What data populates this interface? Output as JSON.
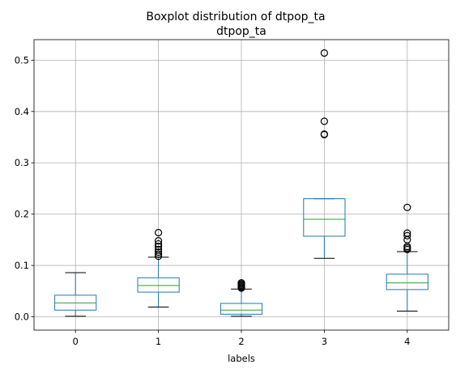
{
  "figure": {
    "suptitle": "Boxplot distribution of dtpop_ta"
  },
  "chart_data": {
    "type": "boxplot",
    "title": "dtpop_ta",
    "xlabel": "labels",
    "ylabel": "",
    "ylim": [
      -0.026,
      0.54
    ],
    "yticks": [
      0.0,
      0.1,
      0.2,
      0.3,
      0.4,
      0.5
    ],
    "ytick_labels": [
      "0.0",
      "0.1",
      "0.2",
      "0.3",
      "0.4",
      "0.5"
    ],
    "grid": true,
    "categories": [
      "0",
      "1",
      "2",
      "3",
      "4"
    ],
    "boxes": [
      {
        "label": "0",
        "whisker_low": 0.001,
        "q1": 0.013,
        "median": 0.027,
        "q3": 0.042,
        "whisker_high": 0.086,
        "outliers": []
      },
      {
        "label": "1",
        "whisker_low": 0.019,
        "q1": 0.048,
        "median": 0.061,
        "q3": 0.076,
        "whisker_high": 0.116,
        "outliers": [
          0.118,
          0.122,
          0.126,
          0.131,
          0.137,
          0.142,
          0.148,
          0.164
        ]
      },
      {
        "label": "2",
        "whisker_low": 0.001,
        "q1": 0.005,
        "median": 0.013,
        "q3": 0.026,
        "whisker_high": 0.054,
        "outliers": [
          0.056,
          0.058,
          0.06,
          0.062,
          0.064,
          0.066
        ]
      },
      {
        "label": "3",
        "whisker_low": 0.114,
        "q1": 0.157,
        "median": 0.19,
        "q3": 0.23,
        "whisker_high": 0.23,
        "outliers": [
          0.355,
          0.356,
          0.381,
          0.514
        ]
      },
      {
        "label": "4",
        "whisker_low": 0.011,
        "q1": 0.053,
        "median": 0.066,
        "q3": 0.083,
        "whisker_high": 0.127,
        "outliers": [
          0.131,
          0.134,
          0.137,
          0.15,
          0.158,
          0.163,
          0.213
        ]
      }
    ],
    "colors": {
      "box": "#1f77b4",
      "whisker": "#1f77b4",
      "cap": "#000000",
      "median": "#2ca02c",
      "grid": "#b0b0b0",
      "outlier": "#000000"
    }
  }
}
